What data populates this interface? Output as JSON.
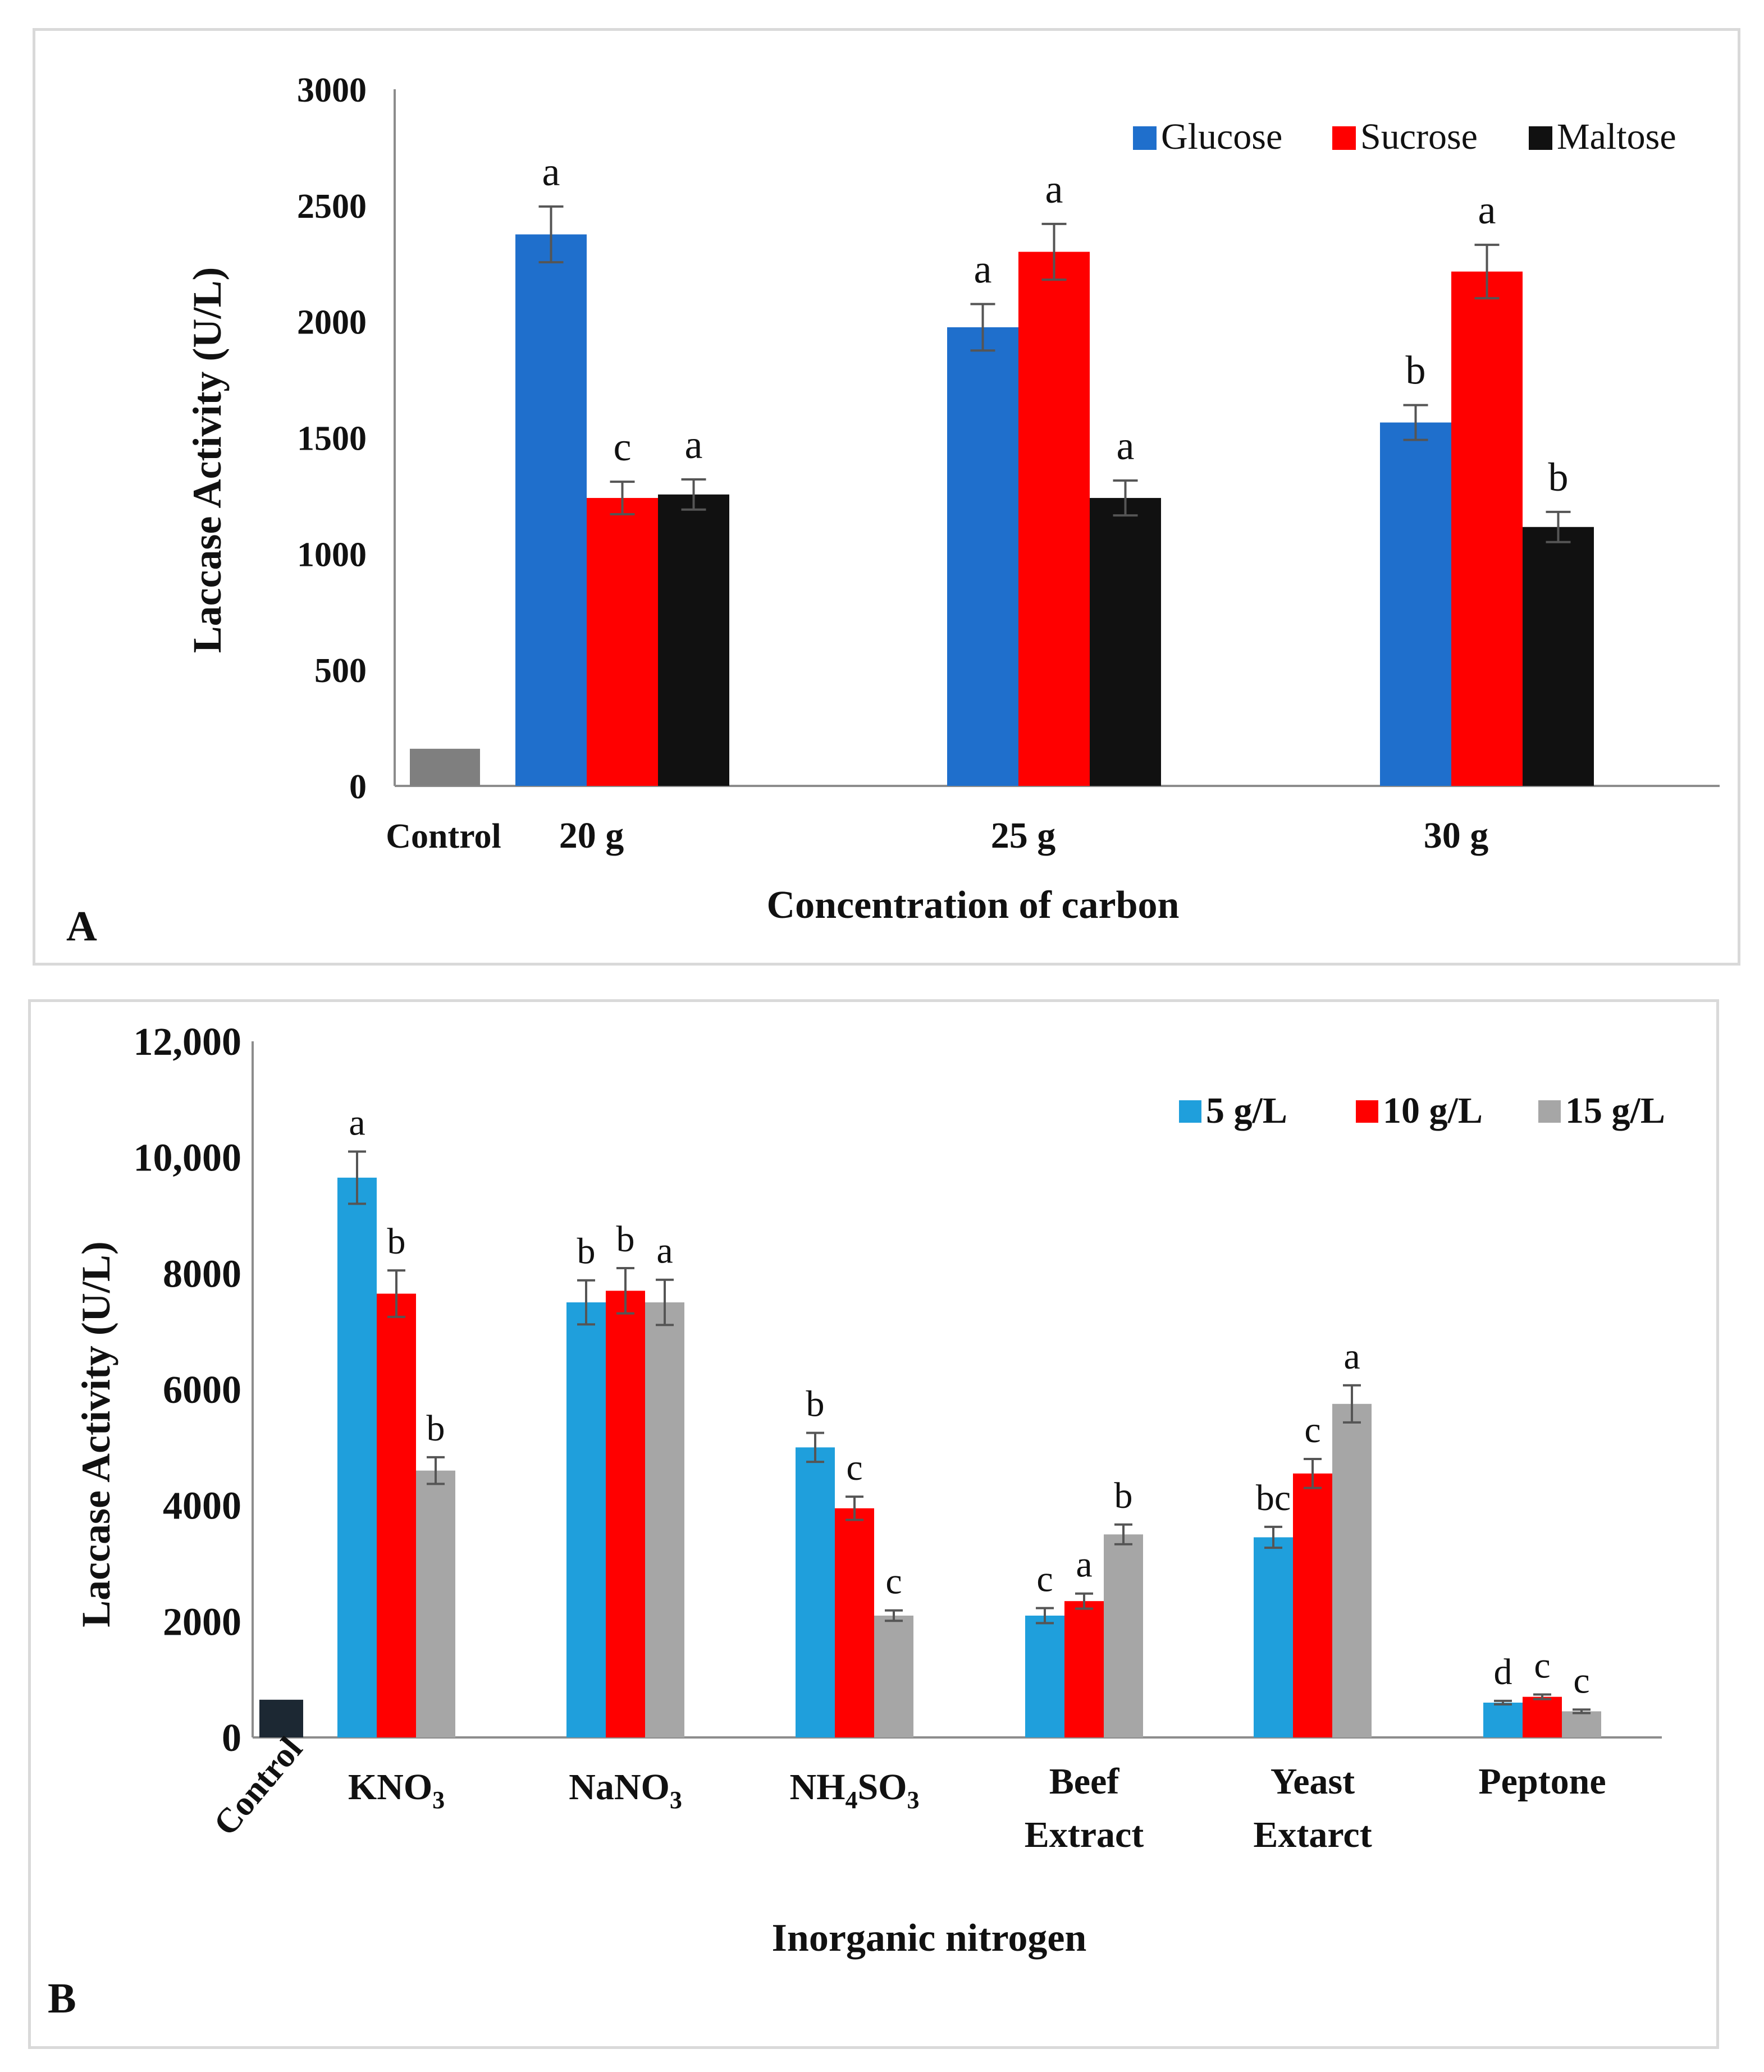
{
  "chart_data": [
    {
      "panel_label": "A",
      "type": "bar",
      "title": "",
      "xlabel": "Concentration   of carbon",
      "ylabel": "Laccase Activity (U/L)",
      "ylim": [
        0,
        3000
      ],
      "yticks": [
        "0",
        "500",
        "1000",
        "1500",
        "2000",
        "2500",
        "3000"
      ],
      "yticks_values": [
        0,
        500,
        1000,
        1500,
        2000,
        2500,
        3000
      ],
      "control": {
        "label": "Control",
        "value": 160,
        "color": "#7f7f7f"
      },
      "categories": [
        "20 g",
        "25 g",
        "30 g"
      ],
      "legend_position": "top-right",
      "series": [
        {
          "name": "Glucose",
          "color": "#1f6fcc",
          "values": [
            2375,
            1975,
            1565
          ],
          "errors": [
            120,
            100,
            75
          ],
          "letters": [
            "a",
            "a",
            "b"
          ]
        },
        {
          "name": "Sucrose",
          "color": "#ff0000",
          "values": [
            1240,
            2300,
            2215
          ],
          "errors": [
            70,
            120,
            115
          ],
          "letters": [
            "c",
            "a",
            "a"
          ]
        },
        {
          "name": "Maltose",
          "color": "#111111",
          "values": [
            1255,
            1240,
            1115
          ],
          "errors": [
            65,
            75,
            65
          ],
          "letters": [
            "a",
            "a",
            "b"
          ]
        }
      ]
    },
    {
      "panel_label": "B",
      "type": "bar",
      "title": "",
      "xlabel": "Inorganic  nitrogen",
      "ylabel": "Laccase Activity (U/L)",
      "ylim": [
        0,
        12000
      ],
      "yticks": [
        "0",
        "2000",
        "4000",
        "6000",
        "8000",
        "10,000",
        "12,000"
      ],
      "yticks_values": [
        0,
        2000,
        4000,
        6000,
        8000,
        10000,
        12000
      ],
      "control": {
        "label": "Control",
        "value": 650,
        "color": "#1c2833"
      },
      "categories": [
        {
          "main": "KNO",
          "sub": "3"
        },
        {
          "main": "NaNO",
          "sub": "3"
        },
        {
          "main": "NH",
          "sub": "4",
          "main2": "SO",
          "sub2": "3"
        },
        {
          "line1": "Beef",
          "line2": "Extract"
        },
        {
          "line1": "Yeast",
          "line2": "Extarct"
        },
        {
          "line1": "Peptone"
        }
      ],
      "legend_position": "top-right",
      "series": [
        {
          "name": "5 g/L",
          "color": "#1f9fdc",
          "values": [
            9650,
            7500,
            5000,
            2100,
            3450,
            600
          ],
          "errors": [
            450,
            380,
            250,
            130,
            180,
            30
          ],
          "letters": [
            "a",
            "b",
            "b",
            "c",
            "bc",
            "d"
          ]
        },
        {
          "name": "10 g/L",
          "color": "#ff0000",
          "values": [
            7650,
            7700,
            3950,
            2350,
            4550,
            700
          ],
          "errors": [
            400,
            390,
            200,
            130,
            250,
            40
          ],
          "letters": [
            "b",
            "b",
            "c",
            "a",
            "c",
            "c"
          ]
        },
        {
          "name": "15 g/L",
          "color": "#a6a6a6",
          "values": [
            4600,
            7500,
            2100,
            3500,
            5750,
            450
          ],
          "errors": [
            230,
            390,
            90,
            170,
            320,
            30
          ],
          "letters": [
            "b",
            "a",
            "c",
            "b",
            "a",
            "c"
          ]
        }
      ]
    }
  ]
}
